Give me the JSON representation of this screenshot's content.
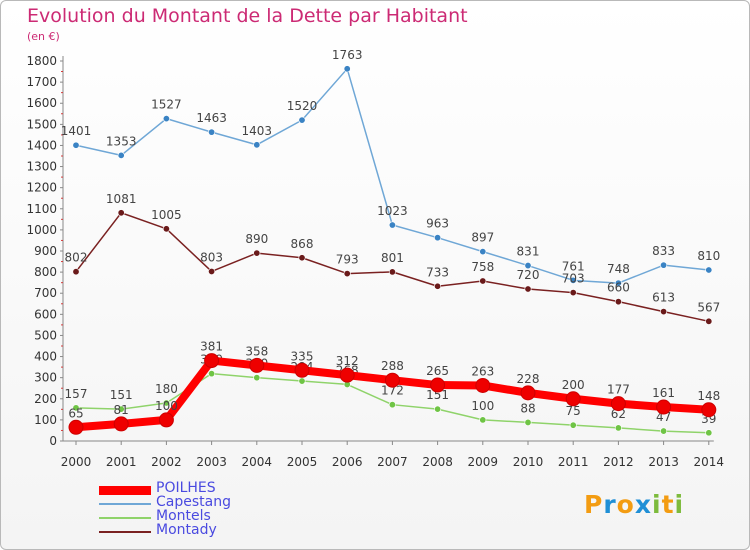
{
  "page": {
    "title": "Evolution du Montant de la Dette par Habitant",
    "unit": "(en €)",
    "logo": {
      "text": "Proxiti",
      "letters": [
        "P",
        "r",
        "o",
        "x",
        "i",
        "t",
        "i"
      ],
      "colors": [
        "#f39c12",
        "#1f8fd6",
        "#f39c12",
        "#1f8fd6",
        "#7dbb3c",
        "#f39c12",
        "#7dbb3c"
      ]
    }
  },
  "chart_data": {
    "type": "line",
    "title": "Evolution du Montant de la Dette par Habitant",
    "subtitle": "(en €)",
    "xlabel": "",
    "ylabel": "",
    "x": [
      "2000",
      "2001",
      "2002",
      "2003",
      "2004",
      "2005",
      "2006",
      "2007",
      "2008",
      "2009",
      "2010",
      "2011",
      "2012",
      "2013",
      "2014"
    ],
    "ylim": [
      0,
      1800
    ],
    "yticks": [
      0,
      100,
      200,
      300,
      400,
      500,
      600,
      700,
      800,
      900,
      1000,
      1100,
      1200,
      1300,
      1400,
      1500,
      1600,
      1700,
      1800
    ],
    "grid": false,
    "legend": "bottom-left",
    "series": [
      {
        "name": "Capestang",
        "color": "#6fa7d6",
        "marker": "#3a83c4",
        "values": [
          1401,
          1353,
          1527,
          1463,
          1403,
          1520,
          1763,
          1023,
          963,
          897,
          831,
          761,
          748,
          833,
          810
        ]
      },
      {
        "name": "Montady",
        "color": "#7a2121",
        "marker": "#6a1a1a",
        "values": [
          802,
          1081,
          1005,
          803,
          890,
          868,
          793,
          801,
          733,
          758,
          720,
          703,
          660,
          613,
          567
        ]
      },
      {
        "name": "Montels",
        "color": "#8fd36a",
        "marker": "#6fc445",
        "values": [
          157,
          151,
          180,
          319,
          300,
          284,
          268,
          172,
          151,
          100,
          88,
          75,
          62,
          47,
          39
        ]
      },
      {
        "name": "POILHES",
        "color": "#ff0000",
        "marker": "#dd0000",
        "values": [
          65,
          81,
          100,
          381,
          358,
          335,
          312,
          288,
          265,
          263,
          228,
          200,
          177,
          161,
          148
        ]
      }
    ],
    "labels": {
      "Capestang": [
        "1401",
        "1353",
        "1527",
        "1463",
        "1403",
        "1520",
        "1763",
        "1023",
        "963",
        "897",
        "831",
        "761",
        "748",
        "833",
        "810"
      ],
      "Montady": [
        "802",
        "1081",
        "1005",
        "803",
        "890",
        "868",
        "793",
        "801",
        "733",
        "758",
        "720",
        "703",
        "660",
        "613",
        "567"
      ],
      "Montels": [
        "157",
        "151",
        "180",
        "319",
        "300",
        "284",
        "268",
        "172",
        "151",
        "100",
        "88",
        "75",
        "62",
        "47",
        "39"
      ],
      "POILHES": [
        "65",
        "81",
        "100",
        "381",
        "358",
        "335",
        "312",
        "288",
        "265",
        "263",
        "228",
        "200",
        "177",
        "161",
        "148"
      ]
    },
    "legend_entries": [
      {
        "name": "POILHES",
        "color": "#ff0000",
        "thick": true
      },
      {
        "name": "Capestang",
        "color": "#6fa7d6",
        "thick": false
      },
      {
        "name": "Montels",
        "color": "#8fd36a",
        "thick": false
      },
      {
        "name": "Montady",
        "color": "#7a2121",
        "thick": false
      }
    ]
  }
}
